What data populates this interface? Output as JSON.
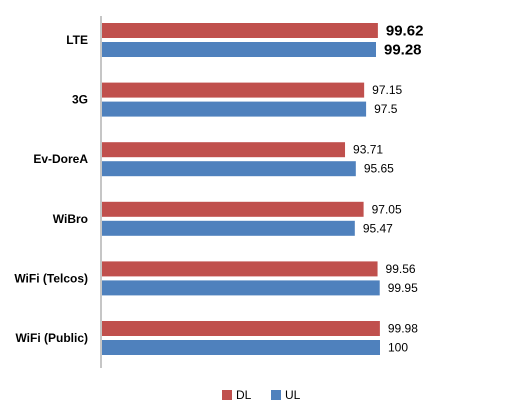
{
  "chart_data": {
    "type": "bar",
    "orientation": "horizontal",
    "categories": [
      "LTE",
      "3G",
      "Ev-DoreA",
      "WiBro",
      "WiFi (Telcos)",
      "WiFi (Public)"
    ],
    "series": [
      {
        "name": "DL",
        "color": "#C0504D",
        "values": [
          99.62,
          97.15,
          93.71,
          97.05,
          99.56,
          99.98
        ],
        "labels": [
          "99.62",
          "97.15",
          "93.71",
          "97.05",
          "99.56",
          "99.98"
        ]
      },
      {
        "name": "UL",
        "color": "#4F81BD",
        "values": [
          99.28,
          97.5,
          95.65,
          95.47,
          99.95,
          100
        ],
        "labels": [
          "99.28",
          "97.5",
          "95.65",
          "95.47",
          "99.95",
          "100"
        ]
      }
    ],
    "highlight_category": "LTE",
    "highlight_label_color": "#F07C24",
    "xlim": [
      50,
      100
    ],
    "grid": false,
    "legend_position": "bottom"
  }
}
